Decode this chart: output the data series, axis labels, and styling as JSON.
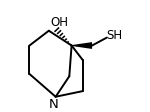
{
  "bg_color": "#ffffff",
  "line_color": "#000000",
  "label_OH": "OH",
  "label_SH": "SH",
  "label_N": "N",
  "figsize": [
    1.5,
    1.12
  ],
  "dpi": 100,
  "lw": 1.4
}
